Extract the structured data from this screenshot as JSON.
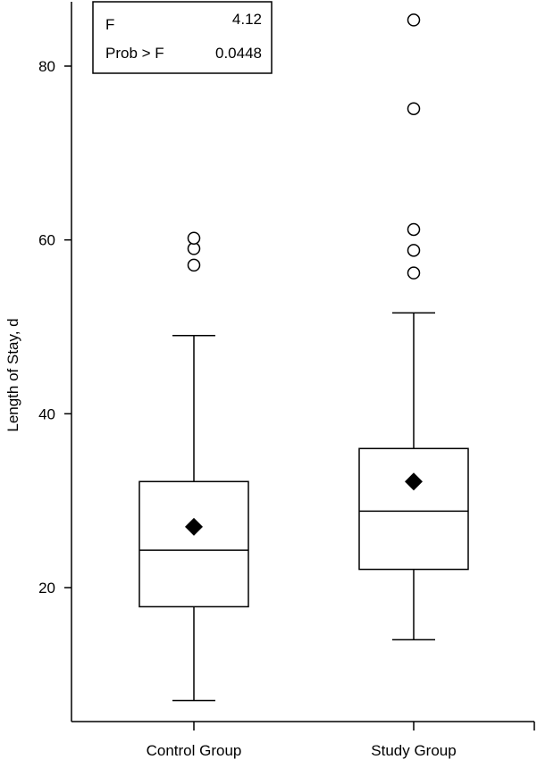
{
  "chart_data": {
    "type": "box",
    "title": "",
    "xlabel": "",
    "ylabel": "Length of Stay, d",
    "ylim": [
      5,
      88
    ],
    "yticks": [
      20,
      40,
      60,
      80
    ],
    "grid": false,
    "categories": [
      "Control Group",
      "Study Group"
    ],
    "groups": [
      {
        "name": "Control Group",
        "whisker_low": 7,
        "q1": 17.8,
        "median": 24.3,
        "q3": 32.2,
        "whisker_high": 49,
        "mean": 27,
        "outliers": [
          57.1,
          59,
          60.2
        ]
      },
      {
        "name": "Study Group",
        "whisker_low": 14,
        "q1": 22.1,
        "median": 28.8,
        "q3": 36,
        "whisker_high": 51.6,
        "mean": 32.2,
        "outliers": [
          56.2,
          58.8,
          61.2,
          75.1,
          85.3
        ]
      }
    ],
    "stats": {
      "f_label": "F",
      "f_value": "4.12",
      "p_label": "Prob > F",
      "p_value": "0.0448"
    }
  }
}
